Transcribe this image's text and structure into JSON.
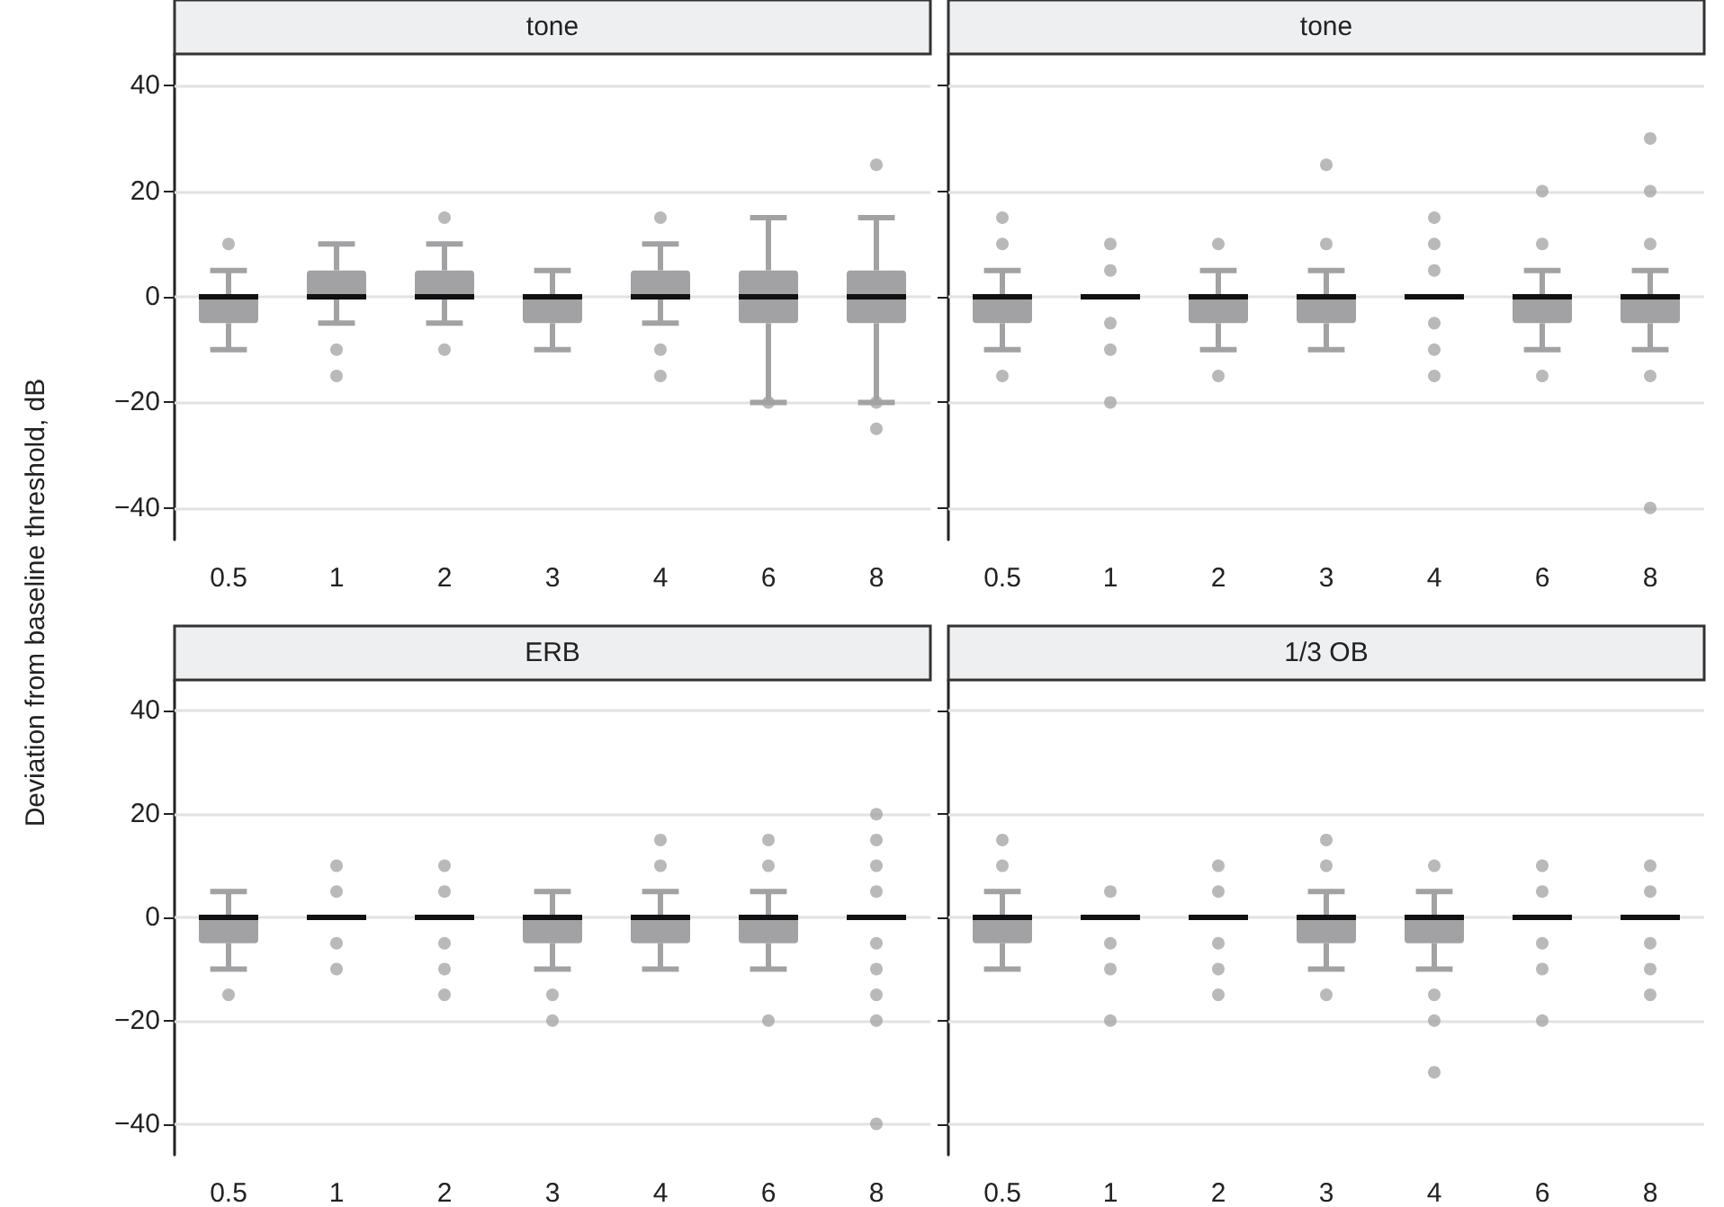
{
  "chart_data": [
    {
      "type": "box",
      "title": "tone",
      "ylabel": "Deviation from baseline threshold, dB",
      "categories": [
        "0.5",
        "1",
        "2",
        "3",
        "4",
        "6",
        "8"
      ],
      "color": "#a2a2a5",
      "ylim": [
        -46,
        46
      ],
      "yticks": [
        -40,
        -20,
        0,
        20,
        40
      ],
      "grid": "y",
      "boxes": [
        {
          "low": -10,
          "q1": -5,
          "median": 0,
          "q3": 0,
          "high": 5,
          "outliers": [
            10
          ]
        },
        {
          "low": -5,
          "q1": 0,
          "median": 0,
          "q3": 5,
          "high": 10,
          "outliers": [
            -10,
            -15
          ]
        },
        {
          "low": -5,
          "q1": 0,
          "median": 0,
          "q3": 5,
          "high": 10,
          "outliers": [
            15,
            -10
          ]
        },
        {
          "low": -10,
          "q1": -5,
          "median": 0,
          "q3": 0,
          "high": 5
        },
        {
          "low": -5,
          "q1": 0,
          "median": 0,
          "q3": 5,
          "high": 10,
          "outliers": [
            15,
            -10,
            -15
          ]
        },
        {
          "low": -20,
          "q1": -5,
          "median": 0,
          "q3": 5,
          "high": 15,
          "outliers": [
            -20
          ]
        },
        {
          "low": -20,
          "q1": -5,
          "median": 0,
          "q3": 5,
          "high": 15,
          "outliers": [
            25,
            -20,
            -25
          ]
        }
      ]
    },
    {
      "type": "box",
      "title": "tone",
      "categories": [
        "0.5",
        "1",
        "2",
        "3",
        "4",
        "6",
        "8"
      ],
      "color": "#a2a2a5",
      "colors": [
        "#a2a2a5",
        "#111111",
        "#a2a2a5",
        "#a2a2a5",
        "#111111",
        "#a2a2a5",
        "#a2a2a5"
      ],
      "ylim": [
        -46,
        46
      ],
      "yticks": [
        -40,
        -20,
        0,
        20,
        40
      ],
      "grid": "y",
      "tick_labels": "x",
      "boxes": [
        {
          "low": -10,
          "q1": -5,
          "median": 0,
          "q3": 0,
          "high": 5,
          "outliers": [
            15,
            10,
            -15
          ]
        },
        {
          "low": 0,
          "q1": 0,
          "median": 0,
          "q3": 0,
          "high": 0,
          "outliers": [
            10,
            5,
            -5,
            -10,
            -20
          ]
        },
        {
          "low": -10,
          "q1": -5,
          "median": 0,
          "q3": 0,
          "high": 5,
          "outliers": [
            10,
            -15
          ]
        },
        {
          "low": -10,
          "q1": -5,
          "median": 0,
          "q3": 0,
          "high": 5,
          "outliers": [
            25,
            10
          ]
        },
        {
          "low": 0,
          "q1": 0,
          "median": 0,
          "q3": 0,
          "high": 0,
          "outliers": [
            15,
            10,
            5,
            -5,
            -10,
            -15
          ]
        },
        {
          "low": -10,
          "q1": -5,
          "median": 0,
          "q3": 0,
          "high": 5,
          "outliers": [
            20,
            10,
            -15
          ]
        },
        {
          "low": -10,
          "q1": -5,
          "median": 0,
          "q3": 0,
          "high": 5,
          "outliers": [
            30,
            20,
            10,
            -15,
            -40
          ]
        }
      ]
    },
    {
      "type": "box",
      "title": "ERB",
      "categories": [
        "0.5",
        "1",
        "2",
        "3",
        "4",
        "6",
        "8"
      ],
      "color": "#a2a2a5",
      "colors": [
        "#a2a2a5",
        "#111111",
        "#111111",
        "#a2a2a5",
        "#a2a2a5",
        "#a2a2a5",
        "#111111"
      ],
      "ylim": [
        -46,
        46
      ],
      "yticks": [
        -40,
        -20,
        0,
        20,
        40
      ],
      "grid": "y",
      "boxes": [
        {
          "low": -10,
          "q1": -5,
          "median": 0,
          "q3": 0,
          "high": 5,
          "outliers": [
            -15
          ]
        },
        {
          "low": 0,
          "q1": 0,
          "median": 0,
          "q3": 0,
          "high": 0,
          "outliers": [
            10,
            5,
            -5,
            -10
          ]
        },
        {
          "low": 0,
          "q1": 0,
          "median": 0,
          "q3": 0,
          "high": 0,
          "outliers": [
            10,
            5,
            -5,
            -10,
            -15
          ]
        },
        {
          "low": -10,
          "q1": -5,
          "median": 0,
          "q3": 0,
          "high": 5,
          "outliers": [
            -15,
            -20
          ]
        },
        {
          "low": -10,
          "q1": -5,
          "median": 0,
          "q3": 0,
          "high": 5,
          "outliers": [
            15,
            10
          ]
        },
        {
          "low": -10,
          "q1": -5,
          "median": 0,
          "q3": 0,
          "high": 5,
          "outliers": [
            15,
            10,
            -20
          ]
        },
        {
          "low": 0,
          "q1": 0,
          "median": 0,
          "q3": 0,
          "high": 0,
          "outliers": [
            20,
            15,
            10,
            5,
            -5,
            -10,
            -15,
            -20,
            -40
          ]
        }
      ]
    },
    {
      "type": "box",
      "title": "1/3 OB",
      "categories": [
        "0.5",
        "1",
        "2",
        "3",
        "4",
        "6",
        "8"
      ],
      "color": "#a2a2a5",
      "colors": [
        "#a2a2a5",
        "#111111",
        "#111111",
        "#a2a2a5",
        "#a2a2a5",
        "#111111",
        "#111111"
      ],
      "ylim": [
        -46,
        46
      ],
      "yticks": [
        -40,
        -20,
        0,
        20,
        40
      ],
      "grid": "y",
      "tick_labels": "x",
      "boxes": [
        {
          "low": -10,
          "q1": -5,
          "median": 0,
          "q3": 0,
          "high": 5,
          "outliers": [
            15,
            10
          ]
        },
        {
          "low": 0,
          "q1": 0,
          "median": 0,
          "q3": 0,
          "high": 0,
          "outliers": [
            5,
            -5,
            -10,
            -20
          ]
        },
        {
          "low": 0,
          "q1": 0,
          "median": 0,
          "q3": 0,
          "high": 0,
          "outliers": [
            10,
            5,
            -5,
            -10,
            -15
          ]
        },
        {
          "low": -10,
          "q1": -5,
          "median": 0,
          "q3": 0,
          "high": 5,
          "outliers": [
            15,
            10,
            -15
          ]
        },
        {
          "low": -10,
          "q1": -5,
          "median": 0,
          "q3": 0,
          "high": 5,
          "outliers": [
            10,
            -15,
            -20,
            -30
          ]
        },
        {
          "low": 0,
          "q1": 0,
          "median": 0,
          "q3": 0,
          "high": 0,
          "outliers": [
            10,
            5,
            -5,
            -10,
            -20
          ]
        },
        {
          "low": 0,
          "q1": 0,
          "median": 0,
          "q3": 0,
          "high": 0,
          "outliers": [
            10,
            5,
            -5,
            -10,
            -15
          ]
        }
      ]
    }
  ]
}
